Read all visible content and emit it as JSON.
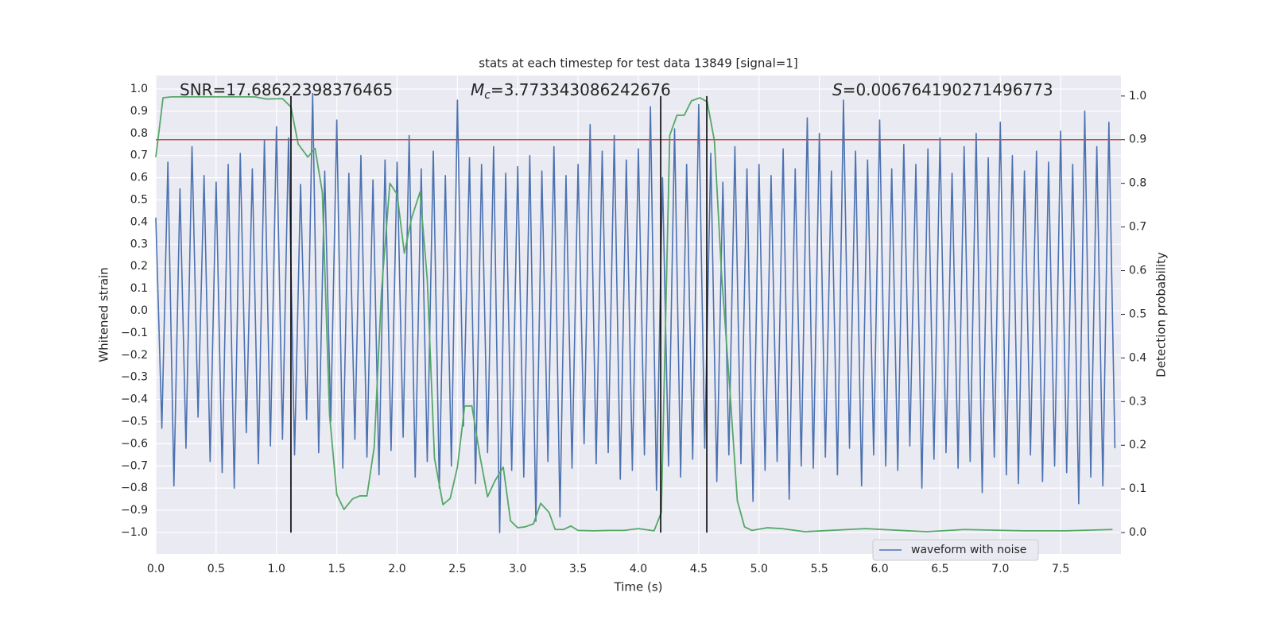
{
  "chart_data": {
    "type": "line",
    "title": "stats at each timestep for test data 13849 [signal=1]",
    "x_label": "Time (s)",
    "y_label": "Whitened strain",
    "y2_label": "Detection probability",
    "annotations": [
      {
        "text": "SNR=17.68622398376465"
      },
      {
        "symbol": "M",
        "subscript": "c",
        "text": "=3.773343086242676"
      },
      {
        "symbol": "S",
        "text": "=0.006764190271496773"
      }
    ],
    "xlim": [
      0,
      8
    ],
    "ylim": [
      -1.097,
      1.061
    ],
    "y2lim": [
      -0.049,
      1.047
    ],
    "grid": true,
    "legend": "lower right",
    "xticks": [
      {
        "value": 0,
        "label": "0.0"
      },
      {
        "value": 0.5,
        "label": "0.5"
      },
      {
        "value": 1,
        "label": "1.0"
      },
      {
        "value": 1.5,
        "label": "1.5"
      },
      {
        "value": 2,
        "label": "2.0"
      },
      {
        "value": 2.5,
        "label": "2.5"
      },
      {
        "value": 3,
        "label": "3.0"
      },
      {
        "value": 3.5,
        "label": "3.5"
      },
      {
        "value": 4,
        "label": "4.0"
      },
      {
        "value": 4.5,
        "label": "4.5"
      },
      {
        "value": 5,
        "label": "5.0"
      },
      {
        "value": 5.5,
        "label": "5.5"
      },
      {
        "value": 6,
        "label": "6.0"
      },
      {
        "value": 6.5,
        "label": "6.5"
      },
      {
        "value": 7,
        "label": "7.0"
      },
      {
        "value": 7.5,
        "label": "7.5"
      }
    ],
    "yticks": [
      {
        "value": 1,
        "label": "1.0"
      },
      {
        "value": 0.9,
        "label": "0.9"
      },
      {
        "value": 0.8,
        "label": "0.8"
      },
      {
        "value": 0.7,
        "label": "0.7"
      },
      {
        "value": 0.6,
        "label": "0.6"
      },
      {
        "value": 0.5,
        "label": "0.5"
      },
      {
        "value": 0.4,
        "label": "0.4"
      },
      {
        "value": 0.3,
        "label": "0.3"
      },
      {
        "value": 0.2,
        "label": "0.2"
      },
      {
        "value": 0.1,
        "label": "0.1"
      },
      {
        "value": 0,
        "label": "0.0"
      },
      {
        "value": -0.1,
        "label": "−0.1"
      },
      {
        "value": -0.2,
        "label": "−0.2"
      },
      {
        "value": -0.3,
        "label": "−0.3"
      },
      {
        "value": -0.4,
        "label": "−0.4"
      },
      {
        "value": -0.5,
        "label": "−0.5"
      },
      {
        "value": -0.6,
        "label": "−0.6"
      },
      {
        "value": -0.7,
        "label": "−0.7"
      },
      {
        "value": -0.8,
        "label": "−0.8"
      },
      {
        "value": -0.9,
        "label": "−0.9"
      },
      {
        "value": -1,
        "label": "−1.0"
      }
    ],
    "y2ticks": [
      {
        "value": 0,
        "label": "0.0"
      },
      {
        "value": 0.1,
        "label": "0.1"
      },
      {
        "value": 0.2,
        "label": "0.2"
      },
      {
        "value": 0.3,
        "label": "0.3"
      },
      {
        "value": 0.4,
        "label": "0.4"
      },
      {
        "value": 0.5,
        "label": "0.5"
      },
      {
        "value": 0.6,
        "label": "0.6"
      },
      {
        "value": 0.7,
        "label": "0.7"
      },
      {
        "value": 0.8,
        "label": "0.8"
      },
      {
        "value": 0.9,
        "label": "0.9"
      },
      {
        "value": 1,
        "label": "1.0"
      }
    ],
    "series": [
      {
        "name": "waveform with noise",
        "color": "#4c72b0",
        "x": [
          0,
          0.05,
          0.1,
          0.15,
          0.2,
          0.25,
          0.3,
          0.35,
          0.4,
          0.45,
          0.5,
          0.55,
          0.6,
          0.65,
          0.7,
          0.75,
          0.8,
          0.85,
          0.9,
          0.95,
          1,
          1.05,
          1.1,
          1.15,
          1.2,
          1.25,
          1.3,
          1.35,
          1.4,
          1.45,
          1.5,
          1.55,
          1.6,
          1.65,
          1.7,
          1.75,
          1.8,
          1.85,
          1.9,
          1.95,
          2,
          2.05,
          2.1,
          2.15,
          2.2,
          2.25,
          2.3,
          2.35,
          2.4,
          2.45,
          2.5,
          2.55,
          2.6,
          2.65,
          2.7,
          2.75,
          2.8,
          2.85,
          2.9,
          2.95,
          3,
          3.05,
          3.1,
          3.15,
          3.2,
          3.25,
          3.3,
          3.35,
          3.4,
          3.45,
          3.5,
          3.55,
          3.6,
          3.65,
          3.7,
          3.75,
          3.8,
          3.85,
          3.9,
          3.95,
          4,
          4.05,
          4.1,
          4.15,
          4.2,
          4.25,
          4.3,
          4.35,
          4.4,
          4.45,
          4.5,
          4.55,
          4.6,
          4.65,
          4.7,
          4.75,
          4.8,
          4.85,
          4.9,
          4.95,
          5,
          5.05,
          5.1,
          5.15,
          5.2,
          5.25,
          5.3,
          5.35,
          5.4,
          5.45,
          5.5,
          5.55,
          5.6,
          5.65,
          5.7,
          5.75,
          5.8,
          5.85,
          5.9,
          5.95,
          6,
          6.05,
          6.1,
          6.15,
          6.2,
          6.25,
          6.3,
          6.35,
          6.4,
          6.45,
          6.5,
          6.55,
          6.6,
          6.65,
          6.7,
          6.75,
          6.8,
          6.85,
          6.9,
          6.95,
          7,
          7.05,
          7.1,
          7.15,
          7.2,
          7.25,
          7.3,
          7.35,
          7.4,
          7.45,
          7.5,
          7.55,
          7.6,
          7.65,
          7.7,
          7.75,
          7.8,
          7.85,
          7.9,
          7.95
        ],
        "values": [
          0.42,
          -0.53,
          0.67,
          -0.79,
          0.55,
          -0.62,
          0.74,
          -0.48,
          0.61,
          -0.68,
          0.58,
          -0.73,
          0.66,
          -0.8,
          0.71,
          -0.55,
          0.64,
          -0.69,
          0.77,
          -0.61,
          0.83,
          -0.58,
          0.78,
          -0.65,
          0.57,
          -0.49,
          0.98,
          -0.64,
          0.63,
          -0.5,
          0.86,
          -0.71,
          0.62,
          -0.58,
          0.7,
          -0.66,
          0.59,
          -0.74,
          0.68,
          -0.63,
          0.67,
          -0.57,
          0.79,
          -0.75,
          0.64,
          -0.68,
          0.72,
          -0.8,
          0.61,
          -0.7,
          0.95,
          -0.52,
          0.69,
          -0.78,
          0.66,
          -0.64,
          0.74,
          -1.0,
          0.62,
          -0.72,
          0.65,
          -0.75,
          0.7,
          -0.95,
          0.63,
          -0.68,
          0.74,
          -0.93,
          0.61,
          -0.71,
          0.66,
          -0.6,
          0.84,
          -0.69,
          0.72,
          -0.64,
          0.79,
          -0.76,
          0.68,
          -0.72,
          0.73,
          -0.65,
          0.92,
          -0.81,
          0.6,
          -0.7,
          0.82,
          -0.75,
          0.66,
          -0.67,
          0.93,
          -0.62,
          0.71,
          -0.77,
          0.58,
          -0.65,
          0.74,
          -0.69,
          0.64,
          -0.86,
          0.66,
          -0.72,
          0.61,
          -0.68,
          0.73,
          -0.85,
          0.64,
          -0.7,
          0.87,
          -0.71,
          0.8,
          -0.66,
          0.63,
          -0.74,
          0.95,
          -0.62,
          0.72,
          -0.79,
          0.68,
          -0.65,
          0.86,
          -0.7,
          0.64,
          -0.72,
          0.75,
          -0.61,
          0.66,
          -0.8,
          0.73,
          -0.67,
          0.78,
          -0.64,
          0.62,
          -0.71,
          0.74,
          -0.68,
          0.8,
          -0.82,
          0.69,
          -0.66,
          0.85,
          -0.74,
          0.7,
          -0.78,
          0.63,
          -0.65,
          0.72,
          -0.77,
          0.67,
          -0.7,
          0.81,
          -0.73,
          0.66,
          -0.87,
          0.9,
          -0.75,
          0.74,
          -0.79,
          0.85,
          -0.62
        ]
      },
      {
        "color": "#55a868",
        "axis": "y2",
        "x": [
          0,
          0.06,
          0.13,
          0.82,
          0.92,
          1.05,
          1.12,
          1.18,
          1.26,
          1.32,
          1.38,
          1.44,
          1.5,
          1.56,
          1.63,
          1.69,
          1.75,
          1.81,
          1.87,
          1.94,
          2.0,
          2.06,
          2.12,
          2.19,
          2.25,
          2.31,
          2.38,
          2.44,
          2.5,
          2.56,
          2.62,
          2.69,
          2.75,
          2.81,
          2.88,
          2.94,
          3.0,
          3.06,
          3.13,
          3.19,
          3.26,
          3.31,
          3.38,
          3.44,
          3.5,
          3.63,
          3.76,
          3.88,
          4.0,
          4.13,
          4.19,
          4.26,
          4.32,
          4.38,
          4.44,
          4.51,
          4.57,
          4.63,
          4.69,
          4.76,
          4.82,
          4.88,
          4.94,
          5.07,
          5.19,
          5.38,
          5.88,
          6.39,
          6.7,
          7.2,
          7.54,
          7.93
        ],
        "values": [
          0.86,
          0.996,
          0.998,
          0.998,
          0.993,
          0.994,
          0.975,
          0.89,
          0.86,
          0.88,
          0.78,
          0.27,
          0.087,
          0.053,
          0.077,
          0.084,
          0.084,
          0.195,
          0.55,
          0.8,
          0.775,
          0.64,
          0.72,
          0.78,
          0.58,
          0.17,
          0.064,
          0.078,
          0.15,
          0.29,
          0.29,
          0.17,
          0.082,
          0.118,
          0.15,
          0.027,
          0.011,
          0.013,
          0.02,
          0.067,
          0.046,
          0.007,
          0.007,
          0.015,
          0.005,
          0.004,
          0.005,
          0.005,
          0.009,
          0.004,
          0.046,
          0.91,
          0.956,
          0.956,
          0.989,
          0.996,
          0.987,
          0.898,
          0.59,
          0.32,
          0.073,
          0.013,
          0.005,
          0.011,
          0.009,
          0.002,
          0.009,
          0.002,
          0.007,
          0.004,
          0.004,
          0.007
        ]
      }
    ],
    "hlines": [
      {
        "value": 0.9,
        "axis": "y2",
        "color": "#c44e52"
      }
    ],
    "vlines": {
      "x": [
        1.12,
        4.185,
        4.567
      ],
      "axis": "y2",
      "range": [
        0,
        1
      ],
      "color": "#000000"
    }
  }
}
